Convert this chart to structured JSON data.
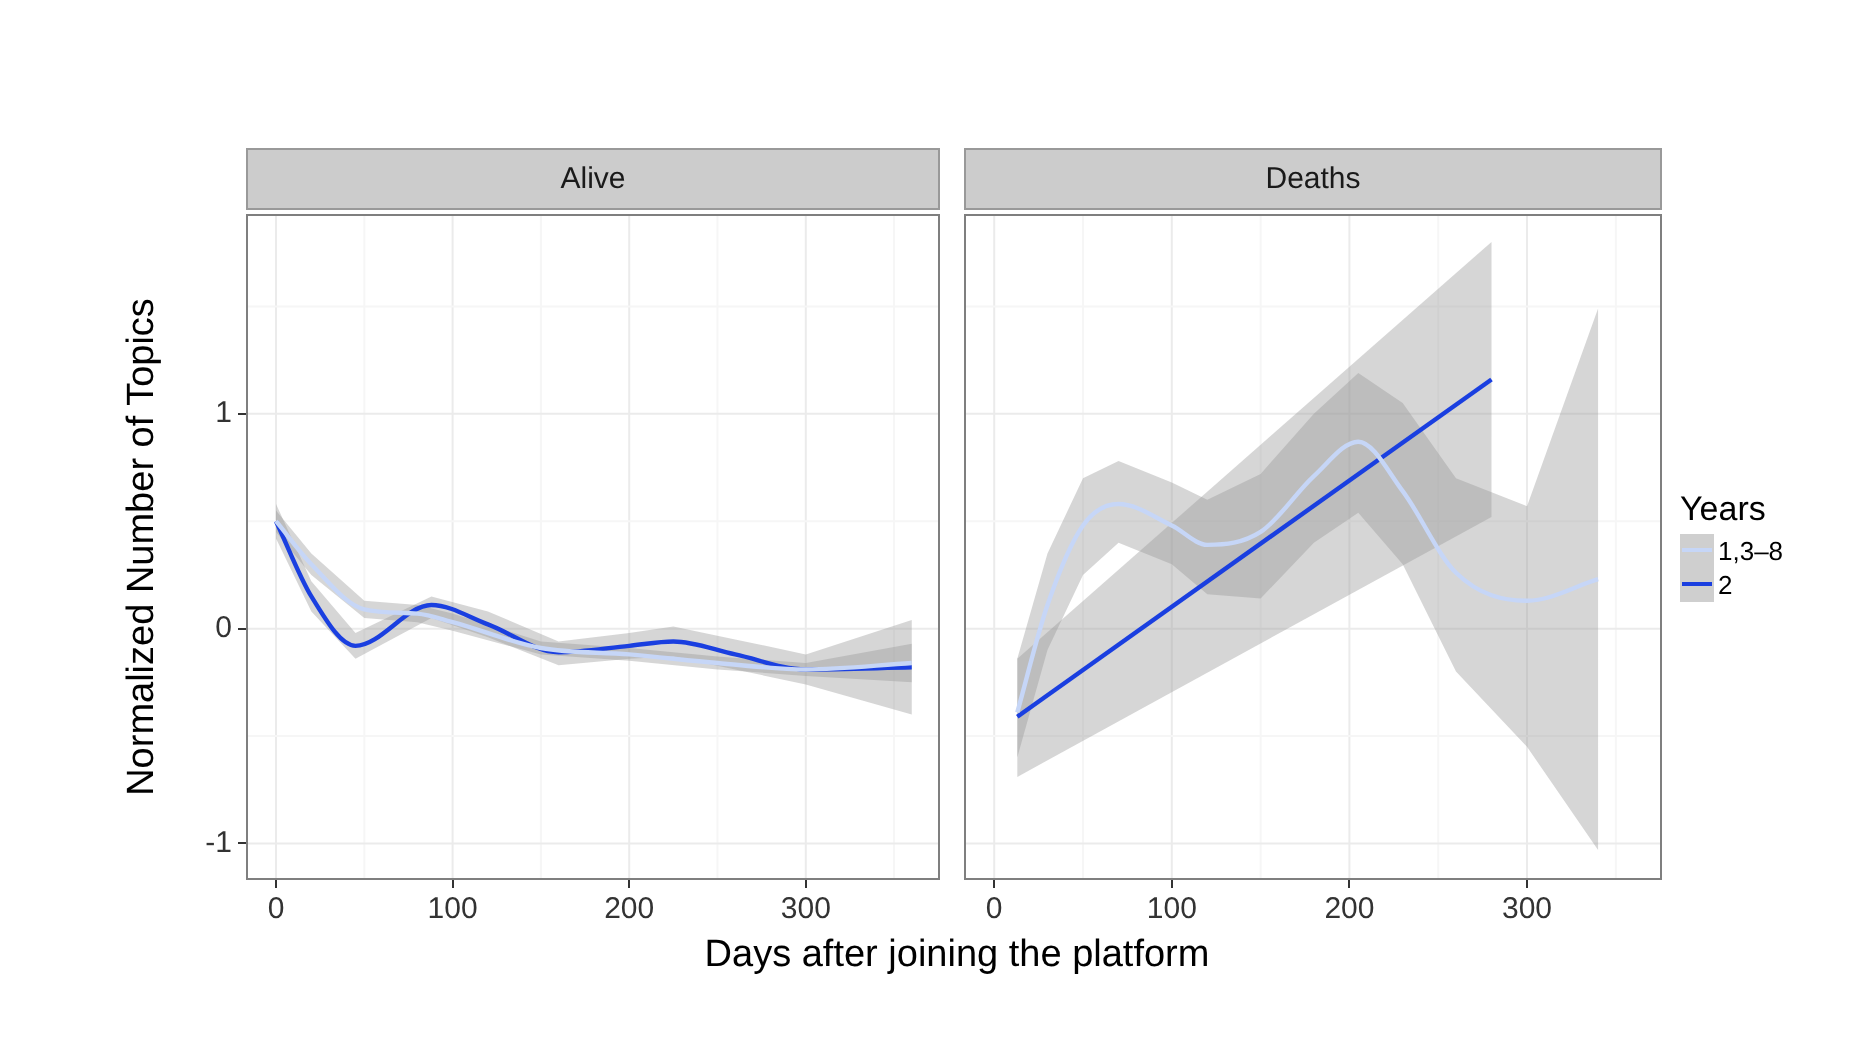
{
  "chart_data": [
    {
      "type": "line",
      "title": "Alive",
      "xlabel": "Days after joining the platform",
      "ylabel": "Normalized Number of Topics",
      "xlim": [
        -17,
        376
      ],
      "xticks": [
        0,
        100,
        200,
        300
      ],
      "ylim": [
        -1.17,
        1.93
      ],
      "yticks": [
        -1,
        0,
        1
      ],
      "grid": true,
      "marker": "none",
      "series": [
        {
          "color": "#c6d6f7",
          "x": [
            0,
            20,
            50,
            80,
            100,
            150,
            200,
            250,
            300,
            360
          ],
          "values": [
            0.5,
            0.3,
            0.09,
            0.07,
            0.03,
            -0.09,
            -0.12,
            -0.16,
            -0.19,
            -0.16
          ],
          "lower": [
            0.45,
            0.25,
            0.05,
            0.03,
            -0.01,
            -0.12,
            -0.15,
            -0.19,
            -0.22,
            -0.25
          ],
          "upper": [
            0.55,
            0.35,
            0.13,
            0.11,
            0.07,
            -0.06,
            -0.09,
            -0.13,
            -0.16,
            -0.07
          ]
        },
        {
          "color": "#1a3fe0",
          "x": [
            0,
            20,
            45,
            88,
            120,
            160,
            200,
            225,
            260,
            300,
            360
          ],
          "values": [
            0.5,
            0.15,
            -0.08,
            0.11,
            0.02,
            -0.11,
            -0.08,
            -0.06,
            -0.12,
            -0.19,
            -0.18
          ],
          "lower": [
            0.42,
            0.08,
            -0.14,
            0.05,
            -0.04,
            -0.17,
            -0.14,
            -0.13,
            -0.19,
            -0.26,
            -0.4
          ],
          "upper": [
            0.58,
            0.22,
            -0.02,
            0.15,
            0.08,
            -0.06,
            -0.02,
            0.01,
            -0.05,
            -0.12,
            0.04
          ]
        }
      ]
    },
    {
      "type": "line",
      "title": "Deaths",
      "xlim": [
        -17,
        376
      ],
      "xticks": [
        0,
        100,
        200,
        300
      ],
      "ylim": [
        -1.17,
        1.93
      ],
      "yticks": [
        -1,
        0,
        1
      ],
      "grid": true,
      "marker": "none",
      "tick_labels": "x",
      "legend": "right",
      "legend_title": "Years",
      "series": [
        {
          "name": "1,3–8",
          "color": "#c6d6f7",
          "x": [
            13,
            30,
            50,
            70,
            100,
            120,
            150,
            180,
            205,
            230,
            260,
            300,
            340
          ],
          "values": [
            -0.39,
            0.11,
            0.48,
            0.58,
            0.48,
            0.39,
            0.45,
            0.71,
            0.87,
            0.64,
            0.26,
            0.13,
            0.23
          ],
          "lower": [
            -0.6,
            -0.1,
            0.25,
            0.4,
            0.3,
            0.16,
            0.14,
            0.4,
            0.54,
            0.3,
            -0.2,
            -0.55,
            -1.03
          ],
          "upper": [
            -0.14,
            0.35,
            0.7,
            0.78,
            0.68,
            0.6,
            0.72,
            1.0,
            1.19,
            1.05,
            0.7,
            0.57,
            1.49
          ]
        },
        {
          "name": "2",
          "color": "#1a3fe0",
          "x": [
            13,
            280
          ],
          "values": [
            -0.41,
            1.16
          ],
          "lower": [
            -0.69,
            0.52
          ],
          "upper": [
            -0.14,
            1.8
          ]
        }
      ]
    }
  ]
}
